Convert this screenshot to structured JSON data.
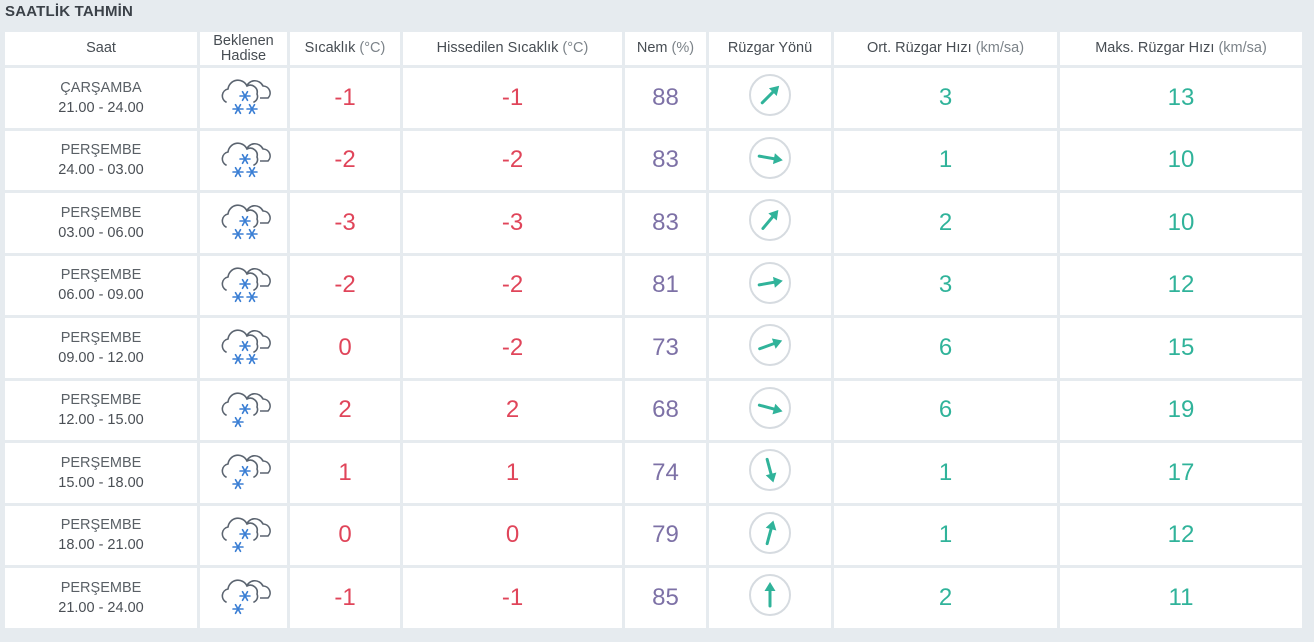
{
  "section_title": "SAATLİK TAHMİN",
  "columns": [
    {
      "label": "Saat",
      "unit": ""
    },
    {
      "label": "Beklenen\nHadise",
      "unit": ""
    },
    {
      "label": "Sıcaklık",
      "unit": "(°C)"
    },
    {
      "label": "Hissedilen Sıcaklık",
      "unit": "(°C)"
    },
    {
      "label": "Nem",
      "unit": "(%)"
    },
    {
      "label": "Rüzgar Yönü",
      "unit": ""
    },
    {
      "label": "Ort. Rüzgar Hızı",
      "unit": "(km/sa)"
    },
    {
      "label": "Maks. Rüzgar Hızı",
      "unit": "(km/sa)"
    }
  ],
  "rows": [
    {
      "day": "ÇARŞAMBA",
      "time": "21.00 - 24.00",
      "icon": "snow-cloud-icon",
      "snowflakes": 3,
      "temp": "-1",
      "feels": "-1",
      "humidity": "88",
      "wind_dir_deg": 45,
      "avg_wind": "3",
      "max_wind": "13"
    },
    {
      "day": "PERŞEMBE",
      "time": "24.00 - 03.00",
      "icon": "snow-cloud-icon",
      "snowflakes": 3,
      "temp": "-2",
      "feels": "-2",
      "humidity": "83",
      "wind_dir_deg": 100,
      "avg_wind": "1",
      "max_wind": "10"
    },
    {
      "day": "PERŞEMBE",
      "time": "03.00 - 06.00",
      "icon": "snow-cloud-icon",
      "snowflakes": 3,
      "temp": "-3",
      "feels": "-3",
      "humidity": "83",
      "wind_dir_deg": 40,
      "avg_wind": "2",
      "max_wind": "10"
    },
    {
      "day": "PERŞEMBE",
      "time": "06.00 - 09.00",
      "icon": "snow-cloud-icon",
      "snowflakes": 3,
      "temp": "-2",
      "feels": "-2",
      "humidity": "81",
      "wind_dir_deg": 80,
      "avg_wind": "3",
      "max_wind": "12"
    },
    {
      "day": "PERŞEMBE",
      "time": "09.00 - 12.00",
      "icon": "snow-cloud-icon",
      "snowflakes": 3,
      "temp": "0",
      "feels": "-2",
      "humidity": "73",
      "wind_dir_deg": 70,
      "avg_wind": "6",
      "max_wind": "15"
    },
    {
      "day": "PERŞEMBE",
      "time": "12.00 - 15.00",
      "icon": "light-snow-cloud-icon",
      "snowflakes": 2,
      "temp": "2",
      "feels": "2",
      "humidity": "68",
      "wind_dir_deg": 105,
      "avg_wind": "6",
      "max_wind": "19"
    },
    {
      "day": "PERŞEMBE",
      "time": "15.00 - 18.00",
      "icon": "light-snow-cloud-icon",
      "snowflakes": 2,
      "temp": "1",
      "feels": "1",
      "humidity": "74",
      "wind_dir_deg": 165,
      "avg_wind": "1",
      "max_wind": "17"
    },
    {
      "day": "PERŞEMBE",
      "time": "18.00 - 21.00",
      "icon": "light-snow-cloud-icon",
      "snowflakes": 2,
      "temp": "0",
      "feels": "0",
      "humidity": "79",
      "wind_dir_deg": 15,
      "avg_wind": "1",
      "max_wind": "12"
    },
    {
      "day": "PERŞEMBE",
      "time": "21.00 - 24.00",
      "icon": "light-snow-cloud-icon",
      "snowflakes": 2,
      "temp": "-1",
      "feels": "-1",
      "humidity": "85",
      "wind_dir_deg": 0,
      "avg_wind": "2",
      "max_wind": "11"
    }
  ],
  "colors": {
    "temperature": "#e0455a",
    "humidity": "#7d71a6",
    "wind": "#30b39a",
    "icon_outline": "#5b6470",
    "snowflake": "#3b7fd4"
  }
}
